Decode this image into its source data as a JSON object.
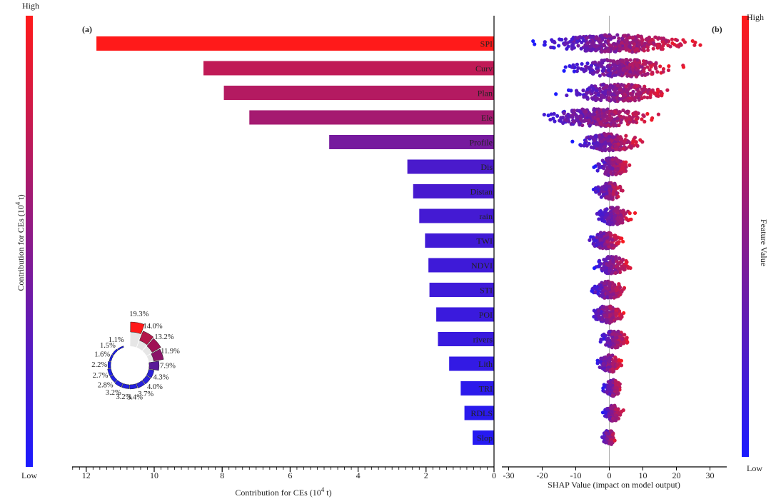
{
  "chart_data": [
    {
      "panel_label": "(a)",
      "type": "bar",
      "orientation": "horizontal-reversed",
      "categories": [
        "SPI",
        "Curv",
        "Plan",
        "Ele",
        "Profile",
        "Dis",
        "Distance",
        "rain",
        "TWI",
        "NDVI",
        "STI",
        "POI",
        "rivers",
        "Lithology",
        "TRI",
        "RDLS",
        "Slope"
      ],
      "category_display": [
        "SPI",
        "Curv",
        "Plan",
        "Ele",
        "Profile",
        "Dis",
        "Distan",
        "rain",
        "TWI",
        "NDVI",
        "STI",
        "POI",
        "rivers",
        "Lith",
        "TRI",
        "RDLS",
        "Slop"
      ],
      "values": [
        11.7,
        8.55,
        7.95,
        7.2,
        4.85,
        2.55,
        2.38,
        2.2,
        2.03,
        1.93,
        1.9,
        1.7,
        1.65,
        1.32,
        0.98,
        0.87,
        0.63
      ],
      "xlabel": "Contribution for CEs (10",
      "xlabel_sup": "4",
      "xlabel_suffix": " t)",
      "xlim": [
        12.4,
        0
      ],
      "xticks": [
        12,
        10,
        8,
        6,
        4,
        2,
        0
      ],
      "colorbar": {
        "label": "Contribution for CEs (10",
        "label_sup": "4",
        "label_suffix": " t)",
        "high": "High",
        "low": "Low",
        "low_color": "#1a1aff",
        "high_color": "#ff1a1a"
      }
    },
    {
      "type": "polar-bar",
      "inset_of": "(a)",
      "slices": [
        {
          "label": "19.3%",
          "value": 19.3,
          "color": "#ff1a1a"
        },
        {
          "label": "14.0%",
          "value": 14.0,
          "color": "#b3174a"
        },
        {
          "label": "13.2%",
          "value": 13.2,
          "color": "#a01055"
        },
        {
          "label": "11.9%",
          "value": 11.9,
          "color": "#8a1468"
        },
        {
          "label": "7.9%",
          "value": 7.9,
          "color": "#5a1a98"
        },
        {
          "label": "4.3%",
          "value": 4.3,
          "color": "#2a20d8"
        },
        {
          "label": "4.0%",
          "value": 4.0,
          "color": "#2820da"
        },
        {
          "label": "3.7%",
          "value": 3.7,
          "color": "#2620dc"
        },
        {
          "label": "3.4%",
          "value": 3.4,
          "color": "#2420de"
        },
        {
          "label": "3.2%",
          "value": 3.2,
          "color": "#2220e0"
        },
        {
          "label": "3.2%",
          "value": 3.2,
          "color": "#2220e0"
        },
        {
          "label": "2.8%",
          "value": 2.8,
          "color": "#2020e2"
        },
        {
          "label": "2.7%",
          "value": 2.7,
          "color": "#1e20e4"
        },
        {
          "label": "2.2%",
          "value": 2.2,
          "color": "#1c1ee6"
        },
        {
          "label": "1.6%",
          "value": 1.6,
          "color": "#1a1ce8"
        },
        {
          "label": "1.5%",
          "value": 1.5,
          "color": "#1a1ce8"
        },
        {
          "label": "1.1%",
          "value": 1.1,
          "color": "#1818ea"
        }
      ]
    },
    {
      "panel_label": "(b)",
      "type": "scatter",
      "subtype": "shap-beeswarm",
      "features": [
        "SPI",
        "Curv",
        "Plan",
        "Ele",
        "Profile",
        "Dis",
        "Distance",
        "rain",
        "TWI",
        "NDVI",
        "STI",
        "POI",
        "rivers",
        "Lithology",
        "TRI",
        "RDLS",
        "Slope"
      ],
      "shap_range": [
        [
          -28,
          32
        ],
        [
          -18,
          25
        ],
        [
          -19,
          23
        ],
        [
          -26,
          20
        ],
        [
          -13,
          14
        ],
        [
          -6,
          8
        ],
        [
          -6,
          6
        ],
        [
          -6,
          9
        ],
        [
          -8,
          6
        ],
        [
          -6,
          8
        ],
        [
          -7,
          7
        ],
        [
          -7,
          6
        ],
        [
          -4,
          7
        ],
        [
          -5,
          5
        ],
        [
          -3,
          5
        ],
        [
          -3,
          5
        ],
        [
          -3,
          3
        ]
      ],
      "xlabel": "SHAP Value (impact on model output)",
      "xlim": [
        -31,
        35
      ],
      "xticks": [
        -30,
        -20,
        -10,
        0,
        10,
        20,
        30
      ],
      "colorbar": {
        "label": "Feature Value",
        "high": "High",
        "low": "Low",
        "low_color": "#1a1aff",
        "high_color": "#ff1a1a"
      }
    }
  ]
}
